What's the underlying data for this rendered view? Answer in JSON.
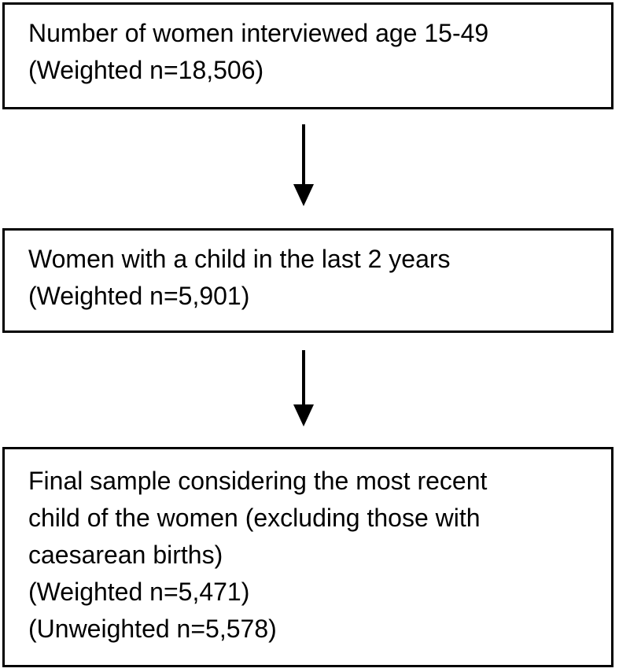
{
  "flowchart": {
    "description": "Sample selection flow diagram",
    "colors": {
      "background": "#ffffff",
      "border": "#000000",
      "text": "#000000"
    },
    "boxes": [
      {
        "id": "women-interviewed",
        "text": "Number of women interviewed age 15-49\n(Weighted n=18,506)",
        "weighted_n": "18,506"
      },
      {
        "id": "child-last-2-years",
        "text": "Women with a child in the last 2 years\n(Weighted n=5,901)",
        "weighted_n": "5,901"
      },
      {
        "id": "final-sample",
        "text": "Final sample considering the most recent\nchild of the women (excluding those with\ncaesarean births)\n(Weighted n=5,471)\n(Unweighted n=5,578)",
        "weighted_n": "5,471",
        "unweighted_n": "5,578"
      }
    ]
  }
}
